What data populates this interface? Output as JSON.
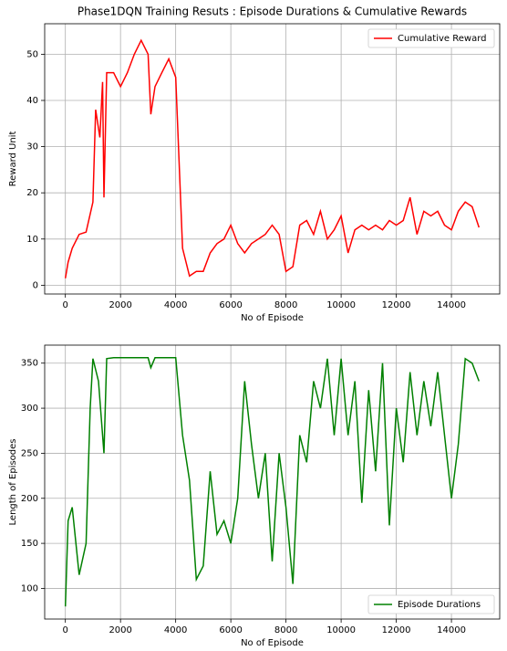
{
  "chart_data": [
    {
      "type": "line",
      "title": "Phase1DQN Training Resuts : Episode Durations & Cumulative Rewards",
      "x_label": "No of Episode",
      "y_label": "Reward Unit",
      "x": [
        0,
        100,
        250,
        500,
        750,
        1000,
        1100,
        1250,
        1350,
        1400,
        1500,
        1750,
        2000,
        2250,
        2500,
        2750,
        3000,
        3100,
        3250,
        3500,
        3750,
        4000,
        4250,
        4500,
        4750,
        5000,
        5250,
        5500,
        5750,
        6000,
        6250,
        6500,
        6750,
        7000,
        7250,
        7500,
        7750,
        8000,
        8250,
        8500,
        8750,
        9000,
        9250,
        9500,
        9750,
        10000,
        10250,
        10500,
        10750,
        11000,
        11250,
        11500,
        11750,
        12000,
        12250,
        12500,
        12750,
        13000,
        13250,
        13500,
        13750,
        14000,
        14250,
        14500,
        14750,
        15000
      ],
      "series": [
        {
          "name": "Cumulative Reward",
          "color": "#ff0000",
          "values": [
            1.5,
            5,
            8,
            11,
            11.5,
            18,
            38,
            32,
            44,
            19,
            46,
            46,
            43,
            46,
            50,
            53,
            50,
            37,
            43,
            46,
            49,
            45,
            8,
            2,
            3,
            3,
            7,
            9,
            10,
            13,
            9,
            7,
            9,
            10,
            11,
            13,
            11,
            3,
            4,
            13,
            14,
            11,
            16,
            10,
            12,
            15,
            7,
            12,
            13,
            12,
            13,
            12,
            14,
            13,
            14,
            19,
            11,
            16,
            15,
            16,
            13,
            12,
            16,
            18,
            17,
            12.5
          ]
        }
      ],
      "xlim": [
        -750,
        15750
      ],
      "xticks": [
        0,
        2000,
        4000,
        6000,
        8000,
        10000,
        12000,
        14000
      ],
      "ylim": [
        -1.9,
        56.6
      ],
      "yticks": [
        0,
        10,
        20,
        30,
        40,
        50
      ],
      "grid": true,
      "legend": "upper right"
    },
    {
      "type": "line",
      "x_label": "No of Episode",
      "y_label": "Length of Episodes",
      "x": [
        0,
        100,
        250,
        500,
        750,
        900,
        1000,
        1200,
        1400,
        1500,
        1750,
        2000,
        3000,
        3100,
        3250,
        4000,
        4250,
        4500,
        4750,
        5000,
        5250,
        5500,
        5750,
        6000,
        6250,
        6500,
        6750,
        7000,
        7250,
        7500,
        7750,
        8000,
        8250,
        8500,
        8750,
        9000,
        9250,
        9500,
        9750,
        10000,
        10250,
        10500,
        10750,
        11000,
        11250,
        11500,
        11750,
        12000,
        12250,
        12500,
        12750,
        13000,
        13250,
        13500,
        13750,
        14000,
        14250,
        14500,
        14750,
        15000
      ],
      "series": [
        {
          "name": "Episode Durations",
          "color": "#008000",
          "values": [
            80,
            175,
            190,
            115,
            150,
            300,
            355,
            330,
            250,
            355,
            356,
            356,
            356,
            345,
            356,
            356,
            270,
            220,
            110,
            125,
            230,
            160,
            175,
            150,
            200,
            330,
            260,
            200,
            250,
            130,
            250,
            190,
            105,
            270,
            240,
            330,
            300,
            355,
            270,
            355,
            270,
            330,
            195,
            320,
            230,
            350,
            170,
            300,
            240,
            340,
            270,
            330,
            280,
            340,
            270,
            200,
            260,
            355,
            350,
            330
          ]
        }
      ],
      "xlim": [
        -750,
        15750
      ],
      "xticks": [
        0,
        2000,
        4000,
        6000,
        8000,
        10000,
        12000,
        14000
      ],
      "ylim": [
        66,
        370
      ],
      "yticks": [
        100,
        150,
        200,
        250,
        300,
        350
      ],
      "grid": true,
      "legend": "lower right"
    }
  ]
}
